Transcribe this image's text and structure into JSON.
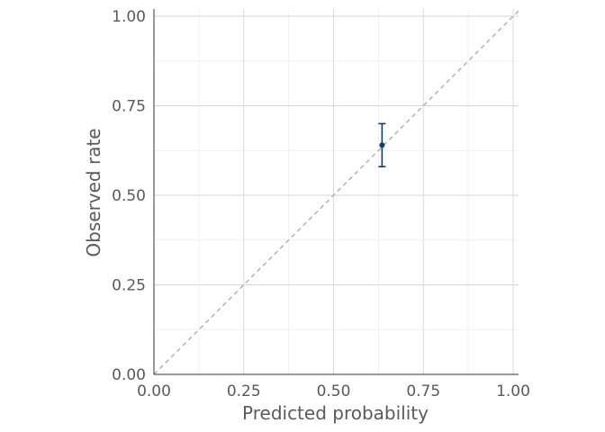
{
  "chart_data": {
    "type": "scatter",
    "title": "",
    "xlabel": "Predicted probability",
    "ylabel": "Observed rate",
    "xlim": [
      0,
      1
    ],
    "ylim": [
      0,
      1
    ],
    "x_ticks": [
      0,
      0.25,
      0.5,
      0.75,
      1.0
    ],
    "y_ticks": [
      0,
      0.25,
      0.5,
      0.75,
      1.0
    ],
    "x_tick_labels": [
      "0.00",
      "0.25",
      "0.50",
      "0.75",
      "1.00"
    ],
    "y_tick_labels": [
      "0.00",
      "0.25",
      "0.50",
      "0.75",
      "1.00"
    ],
    "grid": true,
    "reference_line": {
      "type": "identity",
      "style": "dashed",
      "color": "#a8a8a8"
    },
    "points": [
      {
        "x": 0.635,
        "y": 0.64,
        "ymin": 0.58,
        "ymax": 0.7
      }
    ],
    "point_color": "#1a3a6b"
  }
}
